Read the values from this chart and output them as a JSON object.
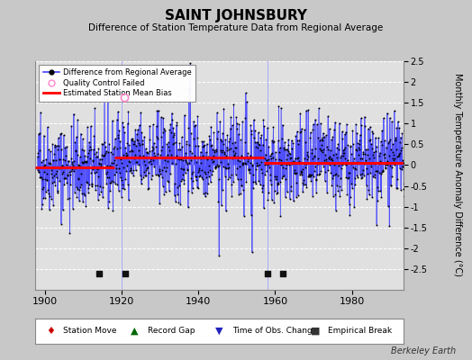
{
  "title": "SAINT JOHNSBURY",
  "subtitle": "Difference of Station Temperature Data from Regional Average",
  "ylabel": "Monthly Temperature Anomaly Difference (°C)",
  "xlabel_years": [
    1900,
    1920,
    1940,
    1960,
    1980
  ],
  "ylim": [
    -3,
    2.5
  ],
  "yticks": [
    -2.5,
    -2,
    -1.5,
    -1,
    -0.5,
    0,
    0.5,
    1,
    1.5,
    2,
    2.5
  ],
  "xlim": [
    1897.5,
    1993.5
  ],
  "year_start": 1898,
  "year_end": 1993,
  "random_seed": 42,
  "bias_segments": [
    {
      "start": 1897.5,
      "end": 1918,
      "bias": -0.05
    },
    {
      "start": 1918,
      "end": 1957,
      "bias": 0.18
    },
    {
      "start": 1957,
      "end": 1993.5,
      "bias": 0.05
    }
  ],
  "empirical_breaks": [
    1914,
    1921,
    1958,
    1962
  ],
  "qc_failed": [
    {
      "year": 1920.8,
      "value": 1.62
    }
  ],
  "vertical_lines": [
    1920,
    1958
  ],
  "line_color": "#4444ff",
  "marker_color": "#000000",
  "bias_color": "#ff0000",
  "qc_color": "#ff88cc",
  "background_color": "#e0e0e0",
  "grid_color": "#ffffff",
  "watermark": "Berkeley Earth",
  "title_fontsize": 11,
  "subtitle_fontsize": 7.5,
  "ylabel_fontsize": 7
}
